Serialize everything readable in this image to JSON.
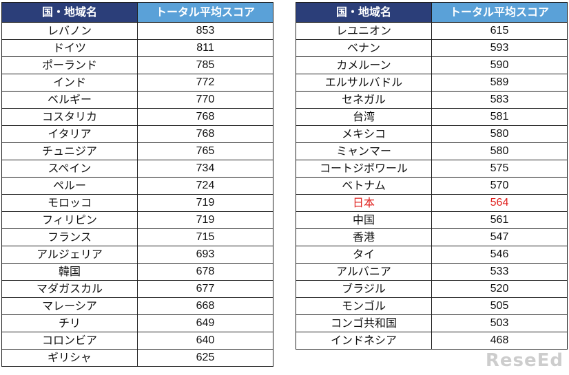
{
  "headers": {
    "country": "国・地域名",
    "score": "トータル平均スコア"
  },
  "left": [
    {
      "name": "レバノン",
      "score": "853"
    },
    {
      "name": "ドイツ",
      "score": "811"
    },
    {
      "name": "ポーランド",
      "score": "785"
    },
    {
      "name": "インド",
      "score": "772"
    },
    {
      "name": "ベルギー",
      "score": "770"
    },
    {
      "name": "コスタリカ",
      "score": "768"
    },
    {
      "name": "イタリア",
      "score": "768"
    },
    {
      "name": "チュニジア",
      "score": "765"
    },
    {
      "name": "スペイン",
      "score": "734"
    },
    {
      "name": "ペルー",
      "score": "724"
    },
    {
      "name": "モロッコ",
      "score": "719"
    },
    {
      "name": "フィリピン",
      "score": "719"
    },
    {
      "name": "フランス",
      "score": "715"
    },
    {
      "name": "アルジェリア",
      "score": "693"
    },
    {
      "name": "韓国",
      "score": "678"
    },
    {
      "name": "マダガスカル",
      "score": "677"
    },
    {
      "name": "マレーシア",
      "score": "668"
    },
    {
      "name": "チリ",
      "score": "649"
    },
    {
      "name": "コロンビア",
      "score": "640"
    },
    {
      "name": "ギリシャ",
      "score": "625"
    }
  ],
  "right": [
    {
      "name": "レユニオン",
      "score": "615"
    },
    {
      "name": "ベナン",
      "score": "593"
    },
    {
      "name": "カメルーン",
      "score": "590"
    },
    {
      "name": "エルサルバドル",
      "score": "589"
    },
    {
      "name": "セネガル",
      "score": "583"
    },
    {
      "name": "台湾",
      "score": "581"
    },
    {
      "name": "メキシコ",
      "score": "580"
    },
    {
      "name": "ミャンマー",
      "score": "580"
    },
    {
      "name": "コートジボワール",
      "score": "575"
    },
    {
      "name": "ベトナム",
      "score": "570"
    },
    {
      "name": "日本",
      "score": "564",
      "highlight": true
    },
    {
      "name": "中国",
      "score": "561"
    },
    {
      "name": "香港",
      "score": "547"
    },
    {
      "name": "タイ",
      "score": "546"
    },
    {
      "name": "アルバニア",
      "score": "533"
    },
    {
      "name": "ブラジル",
      "score": "520"
    },
    {
      "name": "モンゴル",
      "score": "505"
    },
    {
      "name": "コンゴ共和国",
      "score": "503"
    },
    {
      "name": "インドネシア",
      "score": "468"
    }
  ],
  "colors": {
    "header_country": "#2b3e79",
    "header_score": "#5aa1d8",
    "highlight": "#e0211e"
  },
  "watermark": "ReseEd"
}
